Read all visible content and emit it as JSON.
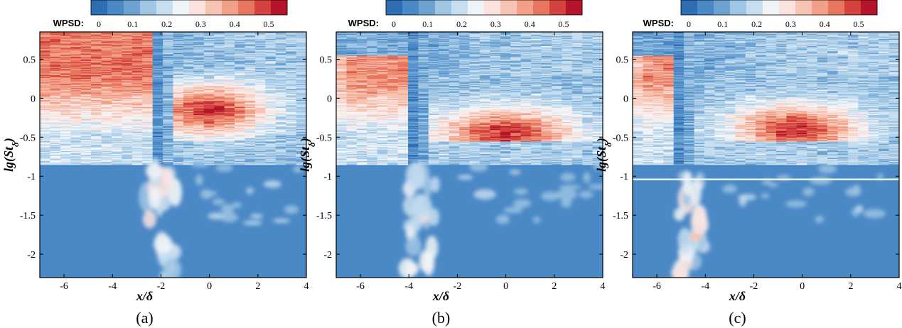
{
  "colors": {
    "colormap": [
      "#2f6db2",
      "#4a88c6",
      "#6da3d3",
      "#9fc6e4",
      "#c7def0",
      "#f1f4f7",
      "#fae3df",
      "#f7c4b3",
      "#f2a088",
      "#e7765f",
      "#d4423f",
      "#b5142b"
    ],
    "field_base": "#4a88c6"
  },
  "chart_data": [
    {
      "panel": "(a)",
      "type": "heatmap",
      "colorbar_label": "WPSD:",
      "colorbar_ticks": [
        "0",
        "0.1",
        "0.2",
        "0.3",
        "0.4",
        "0.5"
      ],
      "xlabel": "x/δ",
      "ylabel_main": "lg(",
      "ylabel_var": "St",
      "ylabel_sub": "δ",
      "ylabel_close": ")",
      "xlim": [
        -7,
        4
      ],
      "ylim": [
        -2.3,
        0.85
      ],
      "xticks": [
        "-6",
        "-4",
        "-2",
        "0",
        "2",
        "4"
      ],
      "yticks": [
        "0.5",
        "0",
        "-0.5",
        "-1",
        "-1.5",
        "-2"
      ],
      "separation_x": -2.3,
      "high_energy_region": {
        "x_range": [
          -1,
          1
        ],
        "lg_St_center": -0.15
      },
      "low_freq_column": {
        "x_center": -2.0,
        "lg_St_range": [
          -2.3,
          -0.9
        ]
      }
    },
    {
      "panel": "(b)",
      "type": "heatmap",
      "colorbar_label": "WPSD:",
      "colorbar_ticks": [
        "0",
        "0.1",
        "0.2",
        "0.3",
        "0.4",
        "0.5"
      ],
      "xlabel": "x/δ",
      "ylabel_main": "lg(",
      "ylabel_var": "St",
      "ylabel_sub": "δ",
      "ylabel_close": ")",
      "xlim": [
        -7,
        4
      ],
      "ylim": [
        -2.3,
        0.85
      ],
      "xticks": [
        "-6",
        "-4",
        "-2",
        "0",
        "2",
        "4"
      ],
      "yticks": [
        "0.5",
        "0",
        "-0.5",
        "-1",
        "-1.5",
        "-2"
      ],
      "separation_x": -3.9,
      "high_energy_region": {
        "x_range": [
          -1.5,
          1.5
        ],
        "lg_St_center": -0.45
      },
      "low_freq_column": {
        "x_center": -3.5,
        "lg_St_range": [
          -2.3,
          -0.9
        ]
      }
    },
    {
      "panel": "(c)",
      "type": "heatmap",
      "colorbar_label": "WPSD:",
      "colorbar_ticks": [
        "0",
        "0.1",
        "0.2",
        "0.3",
        "0.4",
        "0.5"
      ],
      "xlabel": "x/δ",
      "ylabel_main": "lg(",
      "ylabel_var": "St",
      "ylabel_sub": "δ",
      "ylabel_close": ")",
      "xlim": [
        -7,
        4
      ],
      "ylim": [
        -2.3,
        0.85
      ],
      "xticks": [
        "-6",
        "-4",
        "-2",
        "0",
        "2",
        "4"
      ],
      "yticks": [
        "0.5",
        "0",
        "-0.5",
        "-1",
        "-1.5",
        "-2"
      ],
      "separation_x": -5.2,
      "high_energy_region": {
        "x_range": [
          -1.5,
          1.0
        ],
        "lg_St_center": -0.4
      },
      "low_freq_column": {
        "x_center": -4.5,
        "lg_St_range": [
          -2.3,
          -0.9
        ]
      }
    }
  ]
}
